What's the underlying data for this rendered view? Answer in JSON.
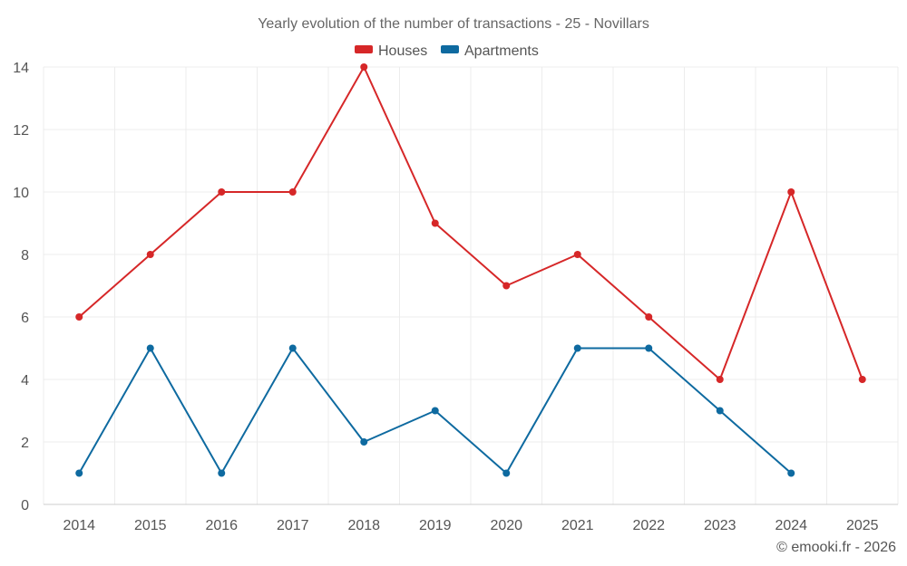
{
  "chart_data": {
    "type": "line",
    "title": "Yearly evolution of the number of transactions - 25 - Novillars",
    "categories": [
      "2014",
      "2015",
      "2016",
      "2017",
      "2018",
      "2019",
      "2020",
      "2021",
      "2022",
      "2023",
      "2024",
      "2025"
    ],
    "ylim": [
      0,
      14
    ],
    "yticks": [
      "0",
      "2",
      "4",
      "6",
      "8",
      "10",
      "12",
      "14"
    ],
    "grid": true,
    "legend_position": "top-center",
    "series": [
      {
        "name": "Houses",
        "color": "#d62728",
        "values": [
          6,
          8,
          10,
          10,
          14,
          9,
          7,
          8,
          6,
          4,
          10,
          4
        ]
      },
      {
        "name": "Apartments",
        "color": "#0e6aa0",
        "values": [
          1,
          5,
          1,
          5,
          2,
          3,
          1,
          5,
          5,
          3,
          1,
          null
        ]
      }
    ]
  },
  "credit": "© emooki.fr - 2026"
}
